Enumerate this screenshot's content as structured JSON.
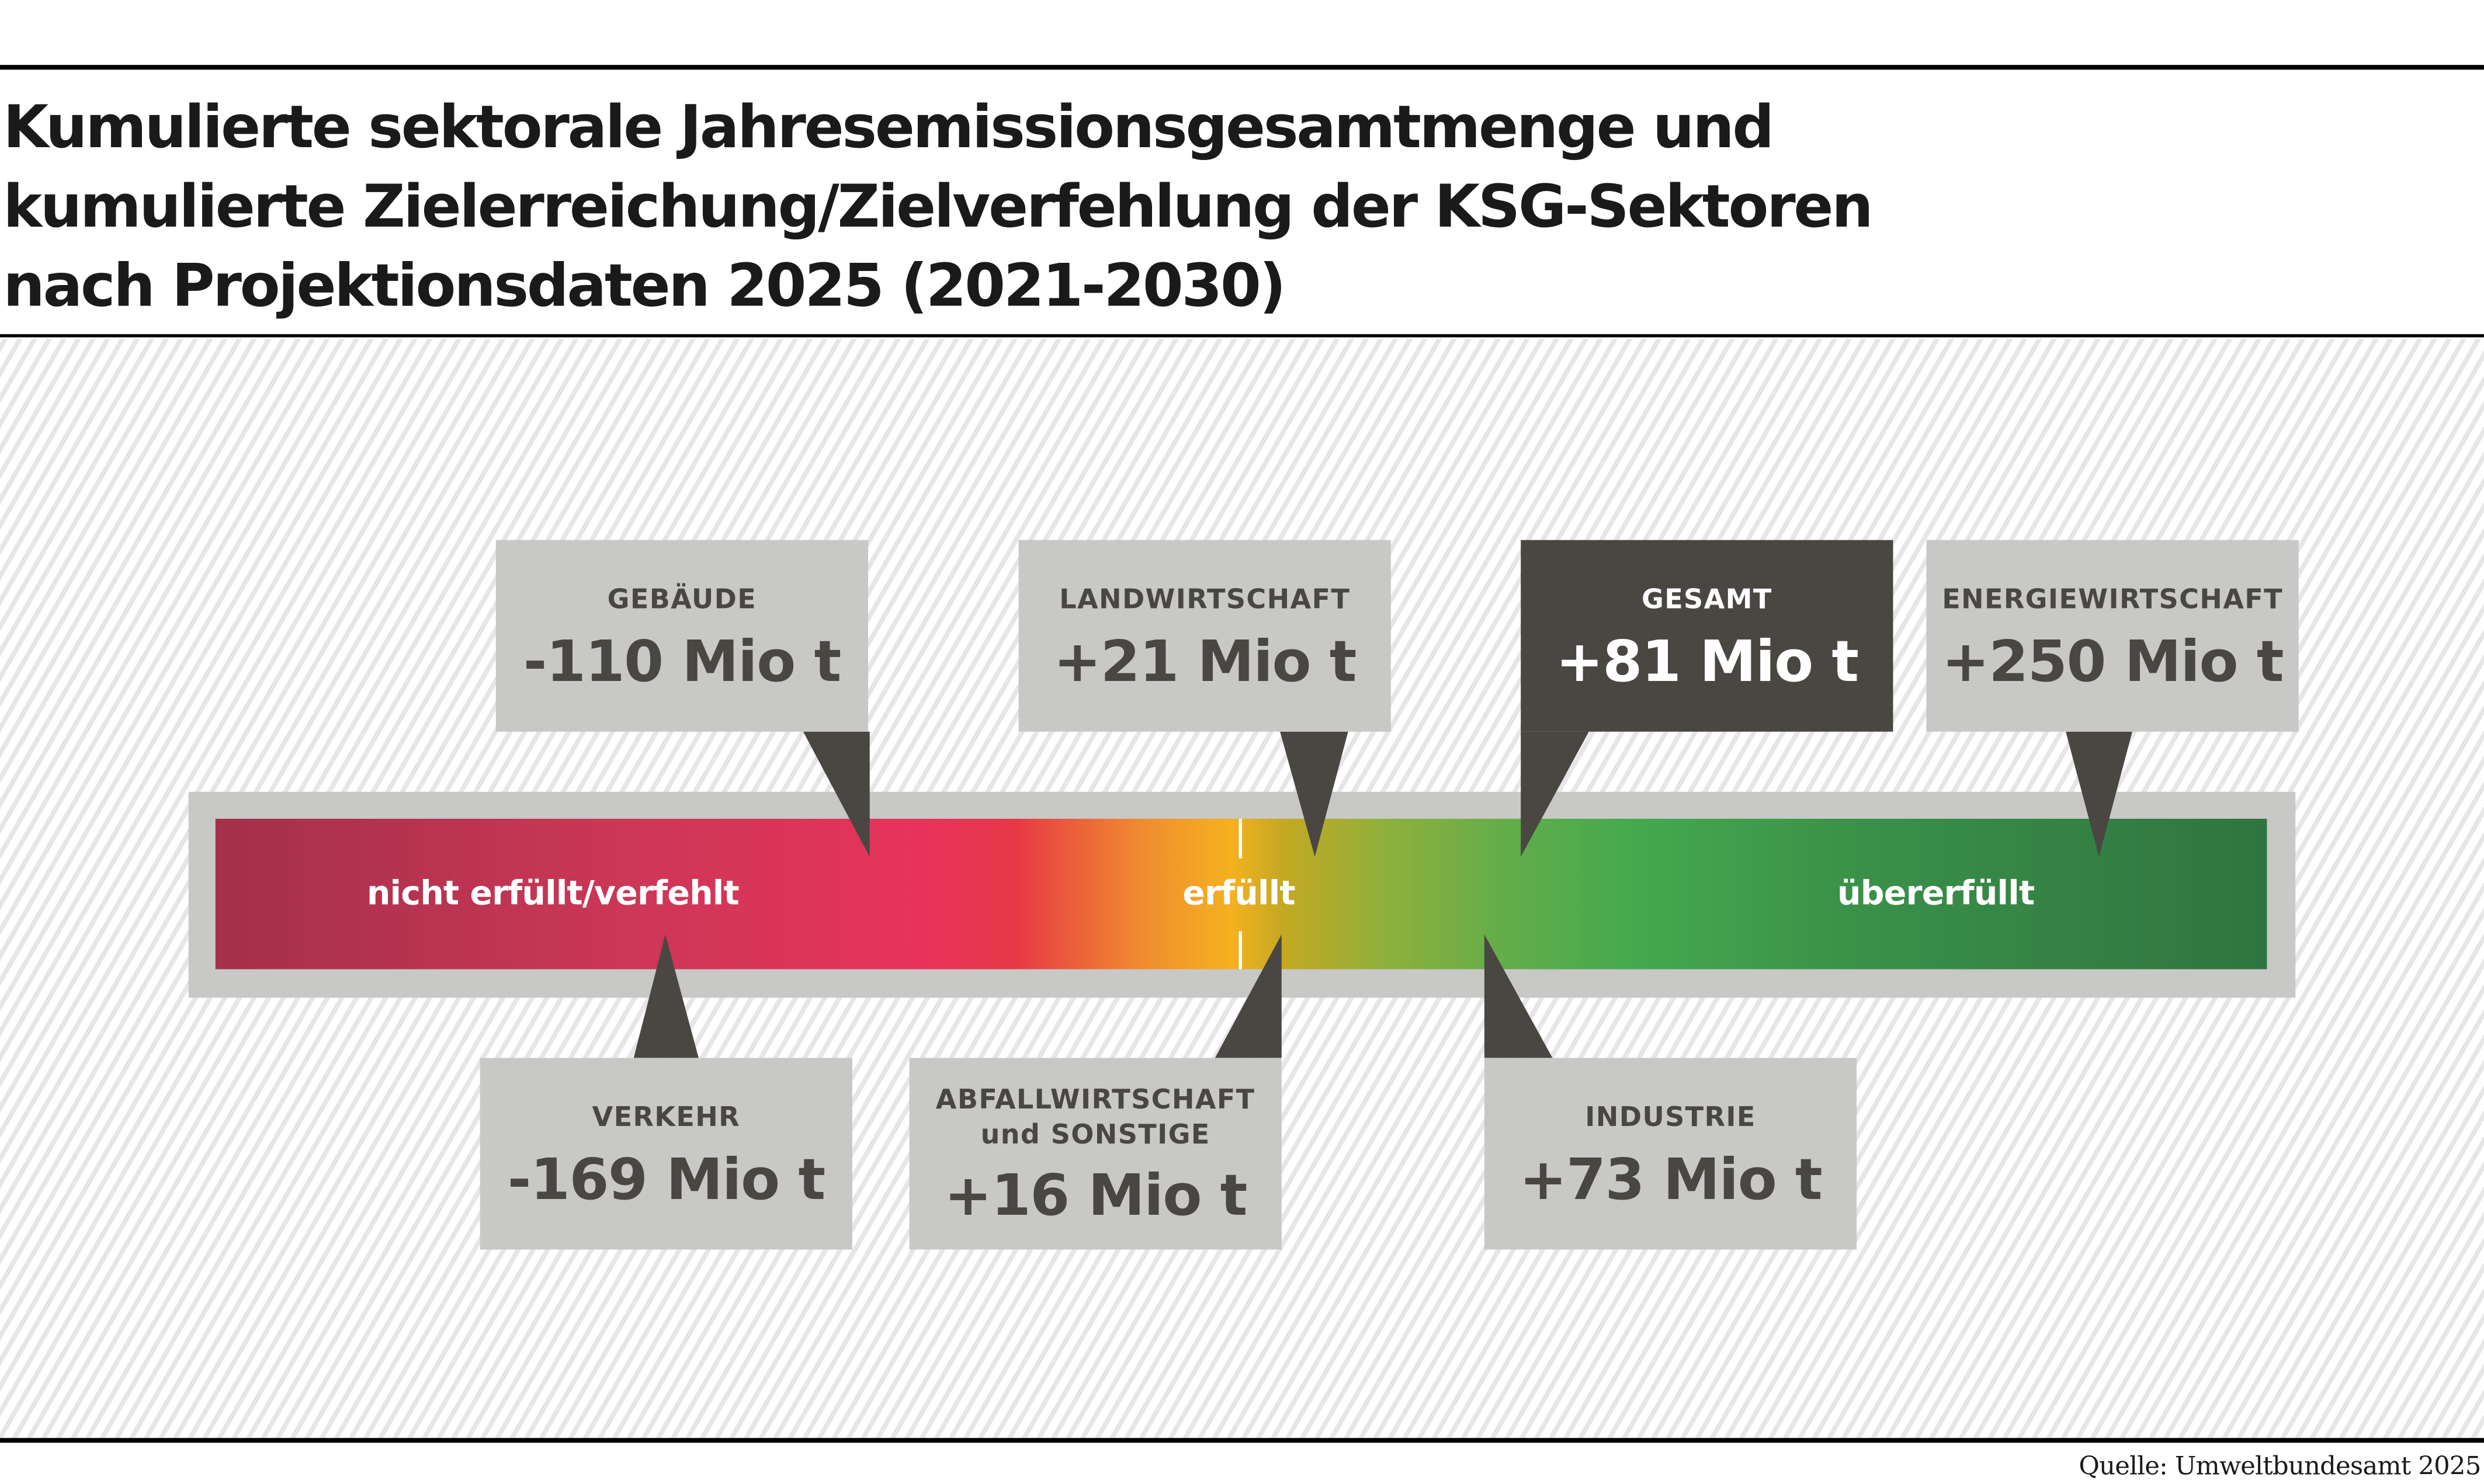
{
  "title": {
    "lines": [
      "Kumulierte sektorale Jahresemissionsgesamtmenge und",
      "kumulierte Zielerreichung/Zielverfehlung der KSG-Sektoren",
      "nach Projektionsdaten 2025 (2021-2030)"
    ]
  },
  "scale": {
    "left_label": "nicht erfüllt/verfehlt",
    "center_label": "erfüllt",
    "right_label": "übererfüllt"
  },
  "sectors_top": [
    {
      "name": "GEBÄUDE",
      "value": "-110 Mio t"
    },
    {
      "name": "LANDWIRTSCHAFT",
      "value": "+21 Mio t"
    },
    {
      "name": "GESAMT",
      "value": "+81 Mio t"
    },
    {
      "name": "ENERGIEWIRTSCHAFT",
      "value": "+250 Mio t"
    }
  ],
  "sectors_bottom": [
    {
      "name": "VERKEHR",
      "value": "-169 Mio t"
    },
    {
      "name": "ABFALLWIRTSCHAFT\nund SONSTIGE",
      "value": "+16 Mio t"
    },
    {
      "name": "INDUSTRIE",
      "value": "+73 Mio t"
    }
  ],
  "colors": {
    "box": "#c8c8c6",
    "box_dark": "#4a4743",
    "red": "#a3304a",
    "yellow": "#f5b120",
    "green": "#2f7440"
  },
  "source": "Quelle: Umweltbundesamt 2025"
}
